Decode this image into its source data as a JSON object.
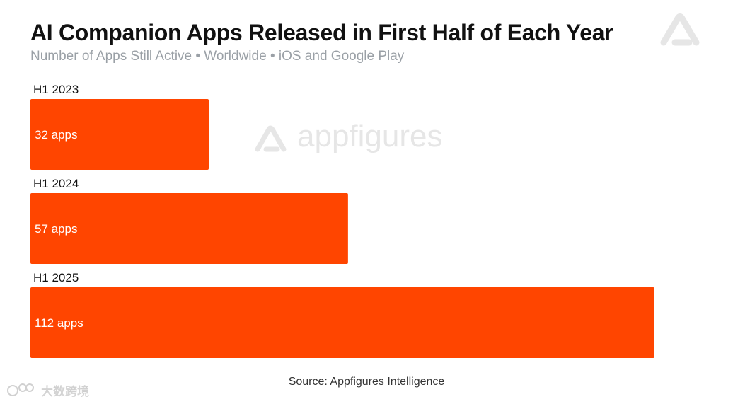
{
  "title": "AI Companion Apps Released in First Half of Each Year",
  "subtitle": "Number of Apps Still Active • Worldwide • iOS and Google Play",
  "source": "Source: Appfigures Intelligence",
  "watermark_text": "appfigures",
  "corner_mark_text": "大数跨境",
  "colors": {
    "bar": "#ff4500",
    "title": "#111111",
    "subtitle": "#9aa0a6",
    "watermark": "#e6e6e6"
  },
  "chart_data": {
    "type": "bar",
    "orientation": "horizontal",
    "categories": [
      "H1 2023",
      "H1 2024",
      "H1 2025"
    ],
    "values": [
      32,
      57,
      112
    ],
    "data_labels": [
      "32 apps",
      "57 apps",
      "112 apps"
    ],
    "title": "AI Companion Apps Released in First Half of Each Year",
    "xlabel": "",
    "ylabel": "",
    "xlim": [
      0,
      112
    ],
    "grid": false,
    "legend": "none"
  }
}
